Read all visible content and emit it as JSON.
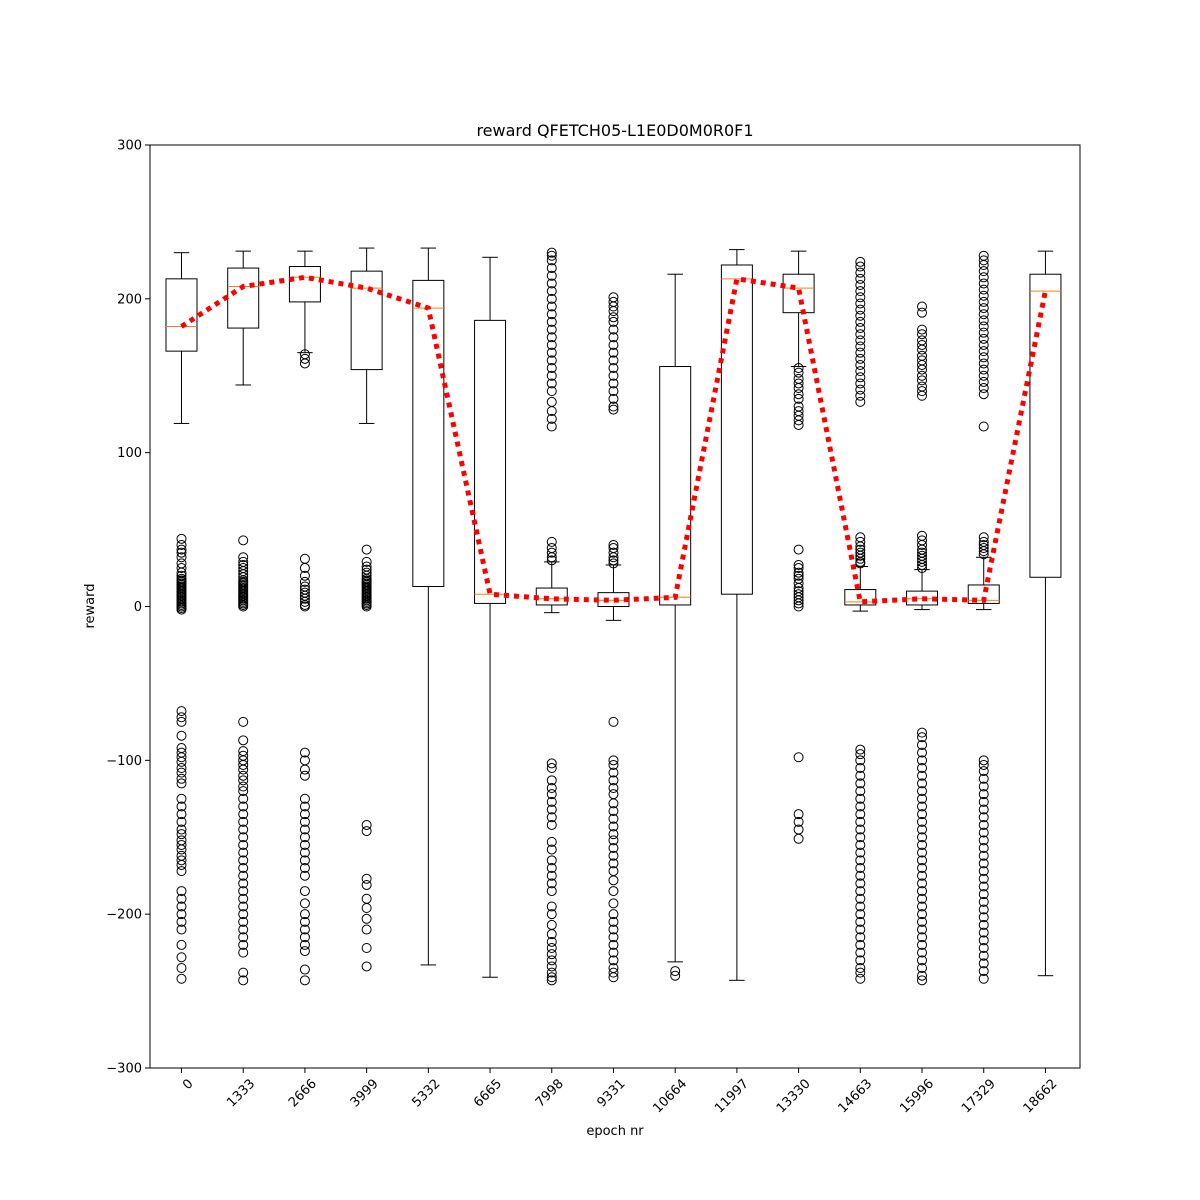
{
  "chart_data": {
    "type": "box",
    "title": "reward QFETCH05-L1E0D0M0R0F1",
    "xlabel": "epoch nr",
    "ylabel": "reward",
    "ylim": [
      -300,
      300
    ],
    "yticks": [
      -300,
      -200,
      -100,
      0,
      100,
      200,
      300
    ],
    "yticklabels": [
      "−300",
      "−200",
      "−100",
      "0",
      "100",
      "200",
      "300"
    ],
    "grid": false,
    "categories": [
      "0",
      "1333",
      "2666",
      "3999",
      "5332",
      "6665",
      "7998",
      "9331",
      "10664",
      "11997",
      "13330",
      "14663",
      "15996",
      "17329",
      "18662"
    ],
    "colors": {
      "box": "#000000",
      "median": "#ff7f0e",
      "trend": "#ff0000"
    },
    "boxes": [
      {
        "label": "0",
        "whislo": 119,
        "q1": 166,
        "med": 182,
        "q3": 213,
        "whishi": 230,
        "fliers": [
          44,
          40,
          37,
          35,
          32,
          28,
          25,
          22,
          20,
          18,
          17,
          16,
          15,
          14,
          13,
          12,
          11,
          10,
          9,
          8,
          7,
          6,
          5,
          4,
          3,
          2,
          1,
          0,
          -1,
          -2,
          -68,
          -72,
          -75,
          -84,
          -92,
          -95,
          -98,
          -101,
          -105,
          -108,
          -112,
          -115,
          -125,
          -130,
          -135,
          -140,
          -145,
          -148,
          -152,
          -155,
          -158,
          -162,
          -165,
          -168,
          -172,
          -185,
          -190,
          -195,
          -200,
          -205,
          -210,
          -220,
          -228,
          -235,
          -242
        ]
      },
      {
        "label": "1333",
        "whislo": 144,
        "q1": 181,
        "med": 208,
        "q3": 220,
        "whishi": 231,
        "fliers": [
          43,
          32,
          29,
          27,
          25,
          23,
          21,
          19,
          17,
          16,
          15,
          14,
          13,
          12,
          11,
          10,
          9,
          8,
          7,
          6,
          5,
          4,
          3,
          2,
          1,
          0,
          -75,
          -87,
          -94,
          -97,
          -100,
          -103,
          -106,
          -110,
          -113,
          -117,
          -120,
          -125,
          -130,
          -135,
          -140,
          -145,
          -150,
          -155,
          -160,
          -165,
          -170,
          -175,
          -180,
          -185,
          -190,
          -195,
          -200,
          -205,
          -210,
          -215,
          -220,
          -225,
          -238,
          -243
        ]
      },
      {
        "label": "2666",
        "whislo": 165,
        "q1": 198,
        "med": 214,
        "q3": 221,
        "whishi": 231,
        "fliers": [
          164,
          161,
          158,
          31,
          25,
          20,
          16,
          13,
          11,
          9,
          7,
          5,
          3,
          1,
          0,
          -95,
          -100,
          -106,
          -110,
          -125,
          -130,
          -135,
          -140,
          -145,
          -150,
          -155,
          -160,
          -165,
          -170,
          -175,
          -185,
          -193,
          -200,
          -205,
          -210,
          -215,
          -220,
          -224,
          -236,
          -243
        ]
      },
      {
        "label": "3999",
        "whislo": 119,
        "q1": 154,
        "med": 207,
        "q3": 218,
        "whishi": 233,
        "fliers": [
          37,
          29,
          26,
          24,
          22,
          20,
          18,
          17,
          16,
          15,
          14,
          13,
          12,
          11,
          10,
          9,
          8,
          7,
          6,
          5,
          4,
          3,
          2,
          1,
          0,
          -142,
          -146,
          -177,
          -181,
          -190,
          -196,
          -203,
          -210,
          -222,
          -234
        ]
      },
      {
        "label": "5332",
        "whislo": -233,
        "q1": 13,
        "med": 194,
        "q3": 212,
        "whishi": 233,
        "fliers": []
      },
      {
        "label": "6665",
        "whislo": -241,
        "q1": 2,
        "med": 8,
        "q3": 186,
        "whishi": 227,
        "fliers": []
      },
      {
        "label": "7998",
        "whislo": -4,
        "q1": 1,
        "med": 5,
        "q3": 12,
        "whishi": 29,
        "fliers": [
          230,
          228,
          225,
          220,
          215,
          210,
          205,
          200,
          195,
          190,
          185,
          180,
          175,
          170,
          165,
          160,
          155,
          150,
          145,
          140,
          133,
          127,
          122,
          117,
          42,
          38,
          35,
          32,
          30,
          -102,
          -105,
          -113,
          -118,
          -122,
          -127,
          -132,
          -137,
          -142,
          -153,
          -158,
          -165,
          -170,
          -175,
          -180,
          -185,
          -195,
          -200,
          -207,
          -213,
          -218,
          -222,
          -226,
          -230,
          -234,
          -238,
          -241,
          -243
        ]
      },
      {
        "label": "9331",
        "whislo": -9,
        "q1": 0,
        "med": 4,
        "q3": 9,
        "whishi": 27,
        "fliers": [
          201,
          198,
          195,
          192,
          188,
          185,
          180,
          175,
          170,
          165,
          160,
          155,
          150,
          145,
          140,
          135,
          130,
          128,
          40,
          38,
          35,
          32,
          30,
          28,
          -75,
          -100,
          -103,
          -108,
          -113,
          -118,
          -122,
          -128,
          -133,
          -138,
          -143,
          -148,
          -152,
          -157,
          -162,
          -167,
          -172,
          -178,
          -185,
          -193,
          -200,
          -205,
          -210,
          -215,
          -220,
          -225,
          -230,
          -235,
          -238,
          -241
        ]
      },
      {
        "label": "10664",
        "whislo": -231,
        "q1": 1,
        "med": 6,
        "q3": 156,
        "whishi": 216,
        "fliers": [
          -237,
          -240
        ]
      },
      {
        "label": "11997",
        "whislo": -243,
        "q1": 8,
        "med": 213,
        "q3": 222,
        "whishi": 232,
        "fliers": []
      },
      {
        "label": "13330",
        "whislo": 156,
        "q1": 191,
        "med": 207,
        "q3": 216,
        "whishi": 231,
        "fliers": [
          155,
          152,
          148,
          145,
          142,
          138,
          135,
          130,
          127,
          124,
          121,
          118,
          37,
          27,
          25,
          22,
          20,
          18,
          15,
          12,
          10,
          8,
          6,
          4,
          2,
          0,
          -98,
          -135,
          -140,
          -145,
          -151
        ]
      },
      {
        "label": "14663",
        "whislo": -3,
        "q1": 1,
        "med": 3,
        "q3": 11,
        "whishi": 26,
        "fliers": [
          224,
          221,
          217,
          213,
          209,
          205,
          201,
          197,
          193,
          189,
          185,
          181,
          177,
          173,
          169,
          165,
          161,
          157,
          153,
          149,
          145,
          141,
          137,
          133,
          45,
          42,
          39,
          37,
          35,
          33,
          31,
          29,
          28,
          -93,
          -96,
          -100,
          -105,
          -110,
          -115,
          -120,
          -125,
          -130,
          -135,
          -140,
          -145,
          -150,
          -155,
          -160,
          -165,
          -170,
          -175,
          -180,
          -185,
          -190,
          -195,
          -200,
          -205,
          -210,
          -215,
          -220,
          -225,
          -230,
          -235,
          -238,
          -242
        ]
      },
      {
        "label": "15996",
        "whislo": -2,
        "q1": 1,
        "med": 5,
        "q3": 10,
        "whishi": 24,
        "fliers": [
          195,
          191,
          180,
          177,
          173,
          170,
          167,
          163,
          160,
          157,
          154,
          150,
          147,
          143,
          140,
          137,
          46,
          43,
          40,
          37,
          35,
          33,
          31,
          29,
          27,
          25,
          -82,
          -85,
          -90,
          -95,
          -100,
          -105,
          -110,
          -115,
          -120,
          -125,
          -130,
          -135,
          -140,
          -145,
          -150,
          -155,
          -160,
          -165,
          -170,
          -175,
          -180,
          -185,
          -190,
          -195,
          -200,
          -205,
          -210,
          -215,
          -220,
          -225,
          -230,
          -235,
          -240,
          -243
        ]
      },
      {
        "label": "17329",
        "whislo": -2,
        "q1": 2,
        "med": 4,
        "q3": 14,
        "whishi": 32,
        "fliers": [
          228,
          225,
          222,
          218,
          214,
          210,
          206,
          202,
          198,
          194,
          190,
          186,
          182,
          178,
          174,
          170,
          166,
          162,
          158,
          154,
          150,
          146,
          142,
          138,
          117,
          45,
          42,
          40,
          38,
          36,
          34,
          -100,
          -103,
          -107,
          -112,
          -117,
          -122,
          -127,
          -132,
          -137,
          -142,
          -147,
          -152,
          -157,
          -162,
          -167,
          -172,
          -177,
          -182,
          -187,
          -192,
          -197,
          -202,
          -207,
          -212,
          -217,
          -222,
          -227,
          -232,
          -237,
          -242
        ]
      },
      {
        "label": "18662",
        "whislo": -240,
        "q1": 19,
        "med": 205,
        "q3": 216,
        "whishi": 231,
        "fliers": []
      }
    ]
  }
}
